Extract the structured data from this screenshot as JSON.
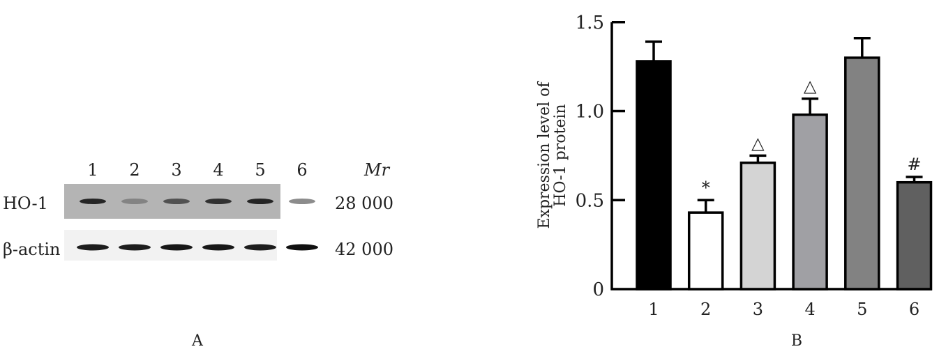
{
  "blot": {
    "lane_labels": [
      "1",
      "2",
      "3",
      "4",
      "5",
      "6"
    ],
    "mr_header": "Mr",
    "rows": [
      {
        "label": "HO-1",
        "mr": "28 000",
        "band_intensity": [
          0.85,
          0.35,
          0.65,
          0.8,
          0.85,
          0.45
        ],
        "background": "#b4b4b4"
      },
      {
        "label": "β-actin",
        "mr": "42 000",
        "band_intensity": [
          0.9,
          0.9,
          0.92,
          0.92,
          0.9,
          0.95
        ],
        "background": "#f2f2f2"
      }
    ],
    "panel_label": "A"
  },
  "chart_data": {
    "type": "bar",
    "categories": [
      "1",
      "2",
      "3",
      "4",
      "5",
      "6"
    ],
    "values": [
      1.28,
      0.43,
      0.71,
      0.98,
      1.3,
      0.6
    ],
    "error_upper": [
      1.39,
      0.5,
      0.75,
      1.07,
      1.41,
      0.63
    ],
    "bar_colors": [
      "#000000",
      "#ffffff",
      "#d4d4d4",
      "#a0a0a4",
      "#828282",
      "#606060"
    ],
    "annotations": [
      "",
      "*",
      "△",
      "△",
      "",
      "#"
    ],
    "ylabel_lines": [
      "Expression level of",
      "HO-1 protein"
    ],
    "xlabel": "",
    "ylim": [
      0,
      1.5
    ],
    "yticks": [
      "0",
      "0.5",
      "1.0",
      "1.5"
    ],
    "ytick_values": [
      0,
      0.5,
      1.0,
      1.5
    ],
    "grid": false,
    "panel_label": "B"
  }
}
